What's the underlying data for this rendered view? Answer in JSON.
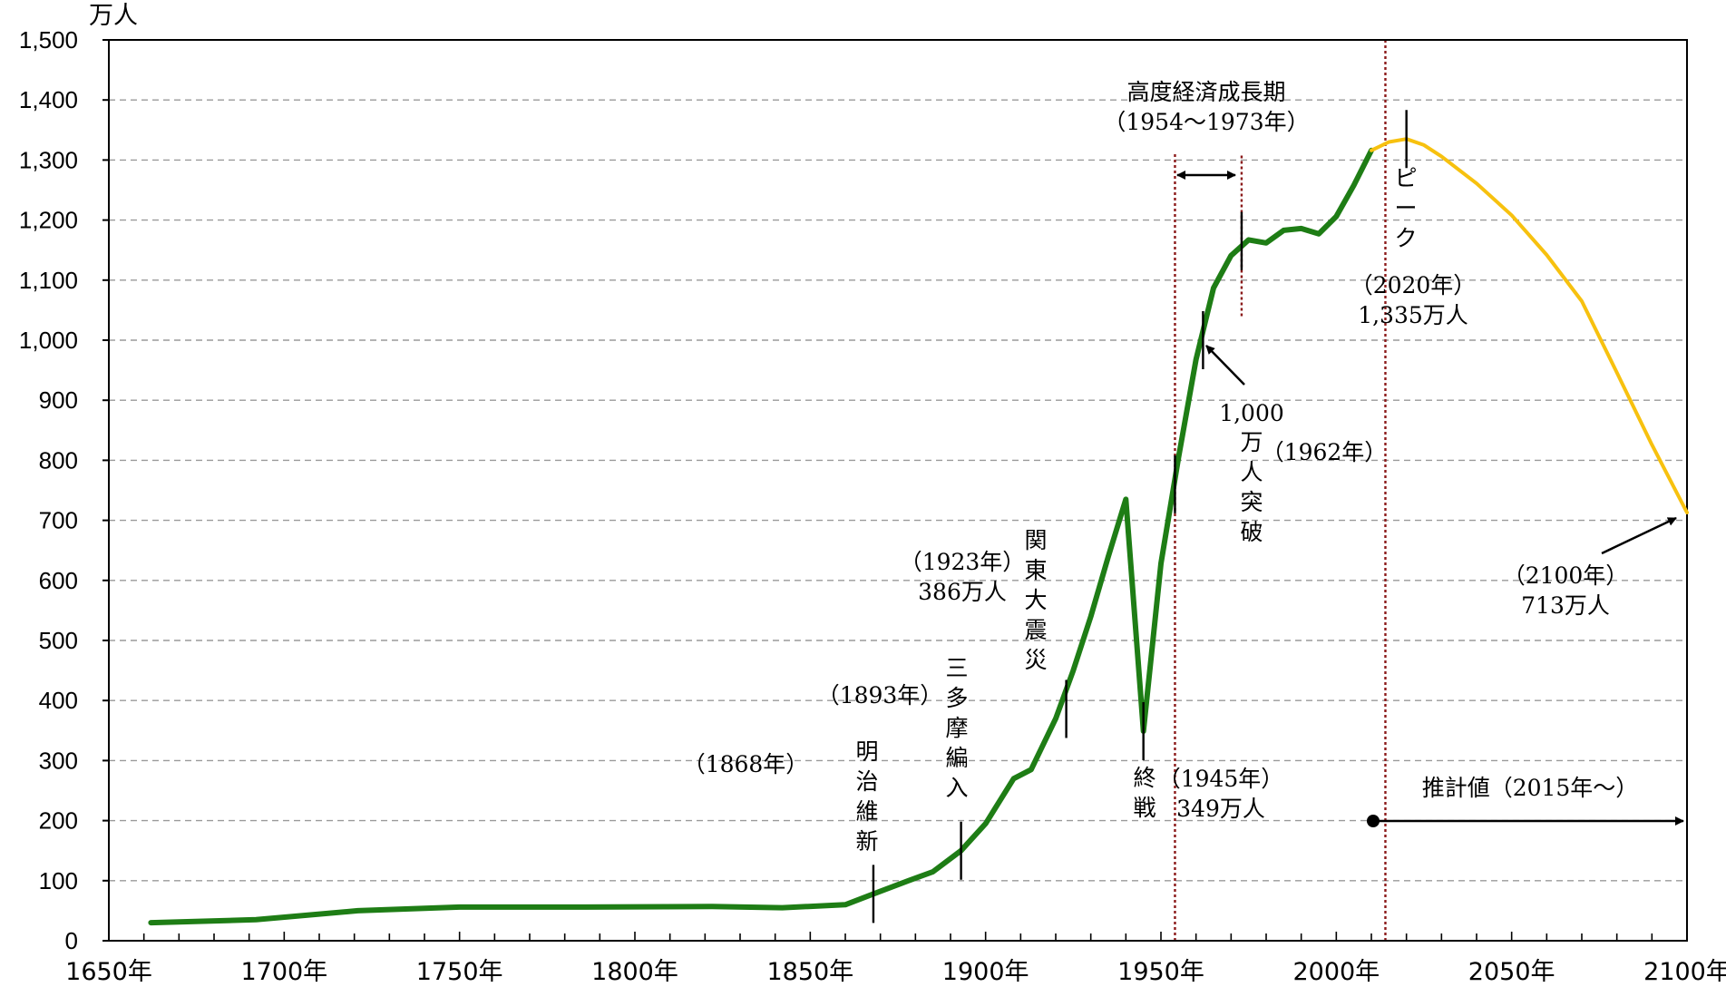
{
  "chart_data": {
    "type": "line",
    "unit_label": "万人",
    "ylim": [
      0,
      1500
    ],
    "yticks": [
      {
        "v": 0,
        "label": "0"
      },
      {
        "v": 100,
        "label": "100"
      },
      {
        "v": 200,
        "label": "200"
      },
      {
        "v": 300,
        "label": "300"
      },
      {
        "v": 400,
        "label": "400"
      },
      {
        "v": 500,
        "label": "500"
      },
      {
        "v": 600,
        "label": "600"
      },
      {
        "v": 700,
        "label": "700"
      },
      {
        "v": 800,
        "label": "800"
      },
      {
        "v": 900,
        "label": "900"
      },
      {
        "v": 1000,
        "label": "1,000"
      },
      {
        "v": 1100,
        "label": "1,100"
      },
      {
        "v": 1200,
        "label": "1,200"
      },
      {
        "v": 1300,
        "label": "1,300"
      },
      {
        "v": 1400,
        "label": "1,400"
      },
      {
        "v": 1500,
        "label": "1,500"
      }
    ],
    "xlim": [
      1650,
      2100
    ],
    "xticks": [
      {
        "v": 1650,
        "label": "1650年"
      },
      {
        "v": 1700,
        "label": "1700年"
      },
      {
        "v": 1750,
        "label": "1750年"
      },
      {
        "v": 1800,
        "label": "1800年"
      },
      {
        "v": 1850,
        "label": "1850年"
      },
      {
        "v": 1900,
        "label": "1900年"
      },
      {
        "v": 1950,
        "label": "1950年"
      },
      {
        "v": 2000,
        "label": "2000年"
      },
      {
        "v": 2050,
        "label": "2050年"
      },
      {
        "v": 2100,
        "label": "2100年"
      }
    ],
    "grid": true,
    "series": [
      {
        "kind": "historical",
        "color": "#1e7d15",
        "points": [
          [
            1662,
            30
          ],
          [
            1692,
            35
          ],
          [
            1721,
            50
          ],
          [
            1750,
            56
          ],
          [
            1786,
            56
          ],
          [
            1822,
            57
          ],
          [
            1842,
            55
          ],
          [
            1860,
            60
          ],
          [
            1868,
            78
          ],
          [
            1878,
            100
          ],
          [
            1885,
            115
          ],
          [
            1893,
            150
          ],
          [
            1900,
            195
          ],
          [
            1908,
            270
          ],
          [
            1913,
            285
          ],
          [
            1920,
            370
          ],
          [
            1925,
            450
          ],
          [
            1930,
            540
          ],
          [
            1935,
            640
          ],
          [
            1940,
            735
          ],
          [
            1945,
            349
          ],
          [
            1950,
            628
          ],
          [
            1955,
            804
          ],
          [
            1960,
            968
          ],
          [
            1965,
            1087
          ],
          [
            1970,
            1141
          ],
          [
            1975,
            1167
          ],
          [
            1980,
            1162
          ],
          [
            1985,
            1183
          ],
          [
            1990,
            1186
          ],
          [
            1995,
            1177
          ],
          [
            2000,
            1206
          ],
          [
            2005,
            1258
          ],
          [
            2010,
            1316
          ]
        ]
      },
      {
        "kind": "projection",
        "color": "#f7c10f",
        "points": [
          [
            2010,
            1316
          ],
          [
            2015,
            1330
          ],
          [
            2020,
            1335
          ],
          [
            2025,
            1325
          ],
          [
            2030,
            1306
          ],
          [
            2040,
            1261
          ],
          [
            2050,
            1208
          ],
          [
            2060,
            1142
          ],
          [
            2070,
            1065
          ],
          [
            2080,
            946
          ],
          [
            2090,
            826
          ],
          [
            2100,
            713
          ]
        ]
      }
    ],
    "event_ticks": [
      {
        "year": 1868,
        "value": 78
      },
      {
        "year": 1893,
        "value": 150
      },
      {
        "year": 1923,
        "value": 386
      },
      {
        "year": 1945,
        "value": 349
      },
      {
        "year": 1954,
        "value": 760
      },
      {
        "year": 1962,
        "value": 1000
      },
      {
        "year": 1973,
        "value": 1165
      },
      {
        "year": 2020,
        "value": 1335
      }
    ],
    "reference_lines": [
      {
        "year": 1954,
        "from": 0,
        "to": 1310
      },
      {
        "year": 1973,
        "from": 1040,
        "to": 1310
      },
      {
        "year": 2014,
        "from": 0,
        "to": 1500
      }
    ],
    "annotations": {
      "meiji_year": "（1868年）",
      "meiji_label": [
        "明",
        "治",
        "維",
        "新"
      ],
      "tama_year": "（1893年）",
      "tama_label": [
        "三",
        "多",
        "摩",
        "編",
        "入"
      ],
      "quake_year": "（1923年）",
      "quake_value": "386万人",
      "quake_label": [
        "関",
        "東",
        "大",
        "震",
        "災"
      ],
      "war_label": [
        "終",
        "戦"
      ],
      "war_year": "（1945年）",
      "war_value": "349万人",
      "growth_title": "高度経済成長期",
      "growth_range": "（1954～1973年）",
      "tenmillion_number": "1,000",
      "tenmillion_label": [
        "万",
        "人",
        "突",
        "破"
      ],
      "tenmillion_year": "（1962年）",
      "peak_label": [
        "ピ",
        "ー",
        "ク"
      ],
      "peak_year": "（2020年）",
      "peak_value": "1,335万人",
      "end_year": "（2100年）",
      "end_value": "713万人",
      "projection_label": "推計値（2015年～）"
    }
  }
}
